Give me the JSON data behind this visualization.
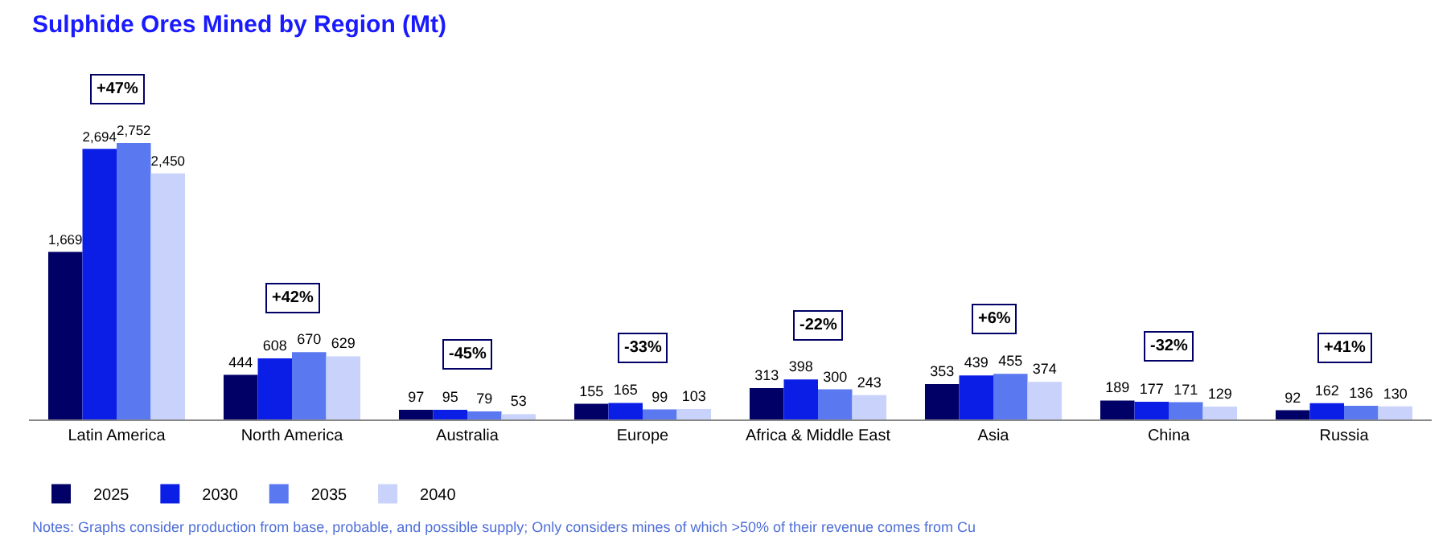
{
  "chart_data": {
    "type": "bar",
    "title": "Sulphide Ores Mined by Region (Mt)",
    "categories": [
      "Latin America",
      "North America",
      "Australia",
      "Europe",
      "Africa & Middle East",
      "Asia",
      "China",
      "Russia"
    ],
    "series": [
      {
        "name": "2025",
        "color": "#000066",
        "values": [
          1669,
          444,
          97,
          155,
          313,
          353,
          189,
          92
        ],
        "value_labels": [
          "1,669",
          "444",
          "97",
          "155",
          "313",
          "353",
          "189",
          "92"
        ]
      },
      {
        "name": "2030",
        "color": "#0a1ee6",
        "values": [
          2694,
          608,
          95,
          165,
          398,
          439,
          177,
          162
        ],
        "value_labels": [
          "2,694",
          "608",
          "95",
          "165",
          "398",
          "439",
          "177",
          "162"
        ]
      },
      {
        "name": "2035",
        "color": "#5a78f0",
        "values": [
          2752,
          670,
          79,
          99,
          300,
          455,
          171,
          136
        ],
        "value_labels": [
          "2,752",
          "670",
          "79",
          "99",
          "300",
          "455",
          "171",
          "136"
        ]
      },
      {
        "name": "2040",
        "color": "#c8d2fa",
        "values": [
          2450,
          629,
          53,
          103,
          243,
          374,
          129,
          130
        ],
        "value_labels": [
          "2,450",
          "629",
          "53",
          "103",
          "243",
          "374",
          "129",
          "130"
        ]
      }
    ],
    "legend": "bottom left",
    "annotations": [
      {
        "text": "+47%",
        "x": "Latin America",
        "y": 2752
      },
      {
        "text": "+42%",
        "x": "North America",
        "y": 670
      },
      {
        "text": "-45%",
        "x": "Australia",
        "y": 97
      },
      {
        "text": "-33%",
        "x": "Europe",
        "y": 165
      },
      {
        "text": "-22%",
        "x": "Africa & Middle East",
        "y": 398
      },
      {
        "text": "+6%",
        "x": "Asia",
        "y": 455
      },
      {
        "text": "-32%",
        "x": "China",
        "y": 189
      },
      {
        "text": "+41%",
        "x": "Russia",
        "y": 162
      },
      "Notes: Graphs consider production from base, probable, and possible supply; Only considers mines of which >50% of their revenue comes from Cu"
    ]
  }
}
